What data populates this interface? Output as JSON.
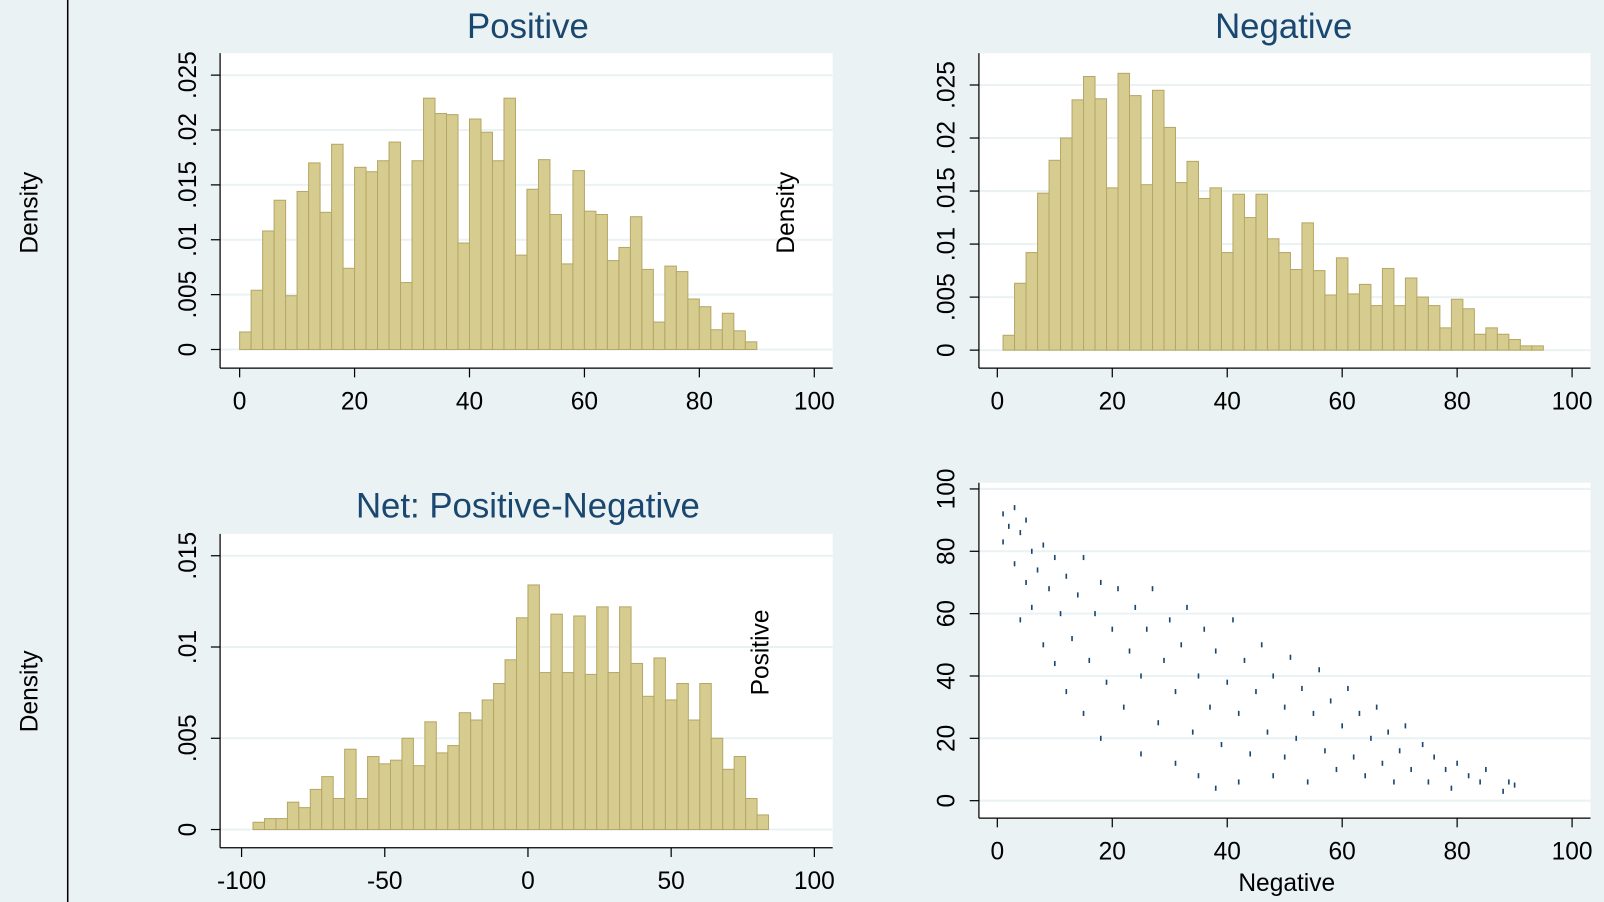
{
  "chart_data": [
    {
      "type": "histogram",
      "title": "Positive",
      "y_label": "Density",
      "color": "#d6cc8f",
      "grid": true,
      "bins": [
        0,
        2,
        4,
        6,
        8,
        10,
        12,
        14,
        16,
        18,
        20,
        22,
        24,
        26,
        28,
        30,
        32,
        34,
        36,
        38,
        40,
        42,
        44,
        46,
        48,
        50,
        52,
        54,
        56,
        58,
        60,
        62,
        64,
        66,
        68,
        70,
        72,
        74,
        76,
        78,
        80,
        82,
        84,
        86,
        88,
        90
      ],
      "values": [
        0.0016,
        0.0054,
        0.0108,
        0.0136,
        0.0049,
        0.0144,
        0.017,
        0.0125,
        0.0187,
        0.0074,
        0.0166,
        0.0162,
        0.0172,
        0.0189,
        0.0061,
        0.0172,
        0.0229,
        0.0215,
        0.0214,
        0.0097,
        0.021,
        0.0198,
        0.0172,
        0.0229,
        0.0086,
        0.0146,
        0.0173,
        0.0123,
        0.0078,
        0.0163,
        0.0126,
        0.0123,
        0.0081,
        0.0093,
        0.0121,
        0.0073,
        0.0025,
        0.0076,
        0.0071,
        0.0046,
        0.0039,
        0.0018,
        0.0033,
        0.0017,
        0.0007
      ],
      "xlim": [
        -3.4,
        103.2
      ],
      "xticks": [
        0,
        20,
        40,
        60,
        80,
        100
      ],
      "ylim": [
        -0.0017,
        0.027
      ],
      "yticks": [
        0,
        {
          "value": 0.005,
          "label": ".005"
        },
        {
          "value": 0.01,
          "label": ".01"
        },
        {
          "value": 0.015,
          "label": ".015"
        },
        {
          "value": 0.02,
          "label": ".02"
        },
        {
          "value": 0.025,
          "label": ".025"
        }
      ]
    },
    {
      "type": "histogram",
      "title": "Negative",
      "y_label": "Density",
      "color": "#d6cc8f",
      "grid": true,
      "bins": [
        1,
        3,
        5,
        7,
        9,
        11,
        13,
        15,
        17,
        19,
        21,
        23,
        25,
        27,
        29,
        31,
        33,
        35,
        37,
        39,
        41,
        43,
        45,
        47,
        49,
        51,
        53,
        55,
        57,
        59,
        61,
        63,
        65,
        67,
        69,
        71,
        73,
        75,
        77,
        79,
        81,
        83,
        85,
        87,
        89,
        91,
        93,
        95
      ],
      "values": [
        0.0014,
        0.0063,
        0.0092,
        0.0148,
        0.0179,
        0.02,
        0.0236,
        0.0258,
        0.0237,
        0.0153,
        0.0261,
        0.024,
        0.0156,
        0.0245,
        0.021,
        0.0158,
        0.0178,
        0.0143,
        0.0153,
        0.0092,
        0.0147,
        0.0125,
        0.0147,
        0.0105,
        0.0092,
        0.0076,
        0.012,
        0.0075,
        0.0052,
        0.0087,
        0.0053,
        0.0062,
        0.0042,
        0.0077,
        0.0042,
        0.0068,
        0.005,
        0.0042,
        0.0021,
        0.0048,
        0.0039,
        0.0015,
        0.0021,
        0.0015,
        0.001,
        0.0004,
        0.0004
      ],
      "xlim": [
        -3.2,
        103.2
      ],
      "xticks": [
        0,
        20,
        40,
        60,
        80,
        100
      ],
      "ylim": [
        -0.0017,
        0.028
      ],
      "yticks": [
        0,
        {
          "value": 0.005,
          "label": ".005"
        },
        {
          "value": 0.01,
          "label": ".01"
        },
        {
          "value": 0.015,
          "label": ".015"
        },
        {
          "value": 0.02,
          "label": ".02"
        },
        {
          "value": 0.025,
          "label": ".025"
        }
      ]
    },
    {
      "type": "histogram",
      "title": "Net: Positive-Negative",
      "y_label": "Density",
      "color": "#d6cc8f",
      "grid": true,
      "bins": [
        -96,
        -92,
        -88,
        -84,
        -80,
        -76,
        -72,
        -68,
        -64,
        -60,
        -56,
        -52,
        -48,
        -44,
        -40,
        -36,
        -32,
        -28,
        -24,
        -20,
        -16,
        -12,
        -8,
        -4,
        0,
        4,
        8,
        12,
        16,
        20,
        24,
        28,
        32,
        36,
        40,
        44,
        48,
        52,
        56,
        60,
        64,
        68,
        72,
        76,
        80,
        84
      ],
      "values": [
        0.0004,
        0.0006,
        0.0006,
        0.0015,
        0.0012,
        0.0022,
        0.0029,
        0.0017,
        0.0044,
        0.0017,
        0.004,
        0.0036,
        0.0038,
        0.005,
        0.0035,
        0.0059,
        0.0042,
        0.0046,
        0.0064,
        0.006,
        0.0071,
        0.008,
        0.0093,
        0.0116,
        0.0134,
        0.0086,
        0.0118,
        0.0086,
        0.0117,
        0.0085,
        0.0122,
        0.0086,
        0.0122,
        0.0091,
        0.0073,
        0.0094,
        0.0071,
        0.008,
        0.006,
        0.008,
        0.005,
        0.0033,
        0.004,
        0.0017,
        0.0008
      ],
      "xlim": [
        -107.5,
        106.4
      ],
      "xticks": [
        -100,
        -50,
        0,
        50,
        100
      ],
      "ylim": [
        -0.001,
        0.0162
      ],
      "yticks": [
        0,
        {
          "value": 0.005,
          "label": ".005"
        },
        {
          "value": 0.01,
          "label": ".01"
        },
        {
          "value": 0.015,
          "label": ".015"
        }
      ]
    },
    {
      "type": "scatter",
      "x_label": "Negative",
      "y_label": "Positive",
      "color": "#1a476f",
      "grid": true,
      "x": [
        1,
        1,
        2,
        3,
        3,
        4,
        5,
        5,
        6,
        6,
        4,
        7,
        8,
        8,
        9,
        10,
        10,
        11,
        12,
        12,
        13,
        14,
        15,
        15,
        16,
        17,
        18,
        18,
        19,
        20,
        21,
        22,
        23,
        24,
        25,
        25,
        26,
        27,
        28,
        29,
        30,
        31,
        31,
        32,
        33,
        34,
        35,
        35,
        36,
        37,
        38,
        38,
        39,
        40,
        41,
        42,
        42,
        43,
        44,
        45,
        46,
        47,
        48,
        48,
        50,
        50,
        51,
        52,
        53,
        54,
        55,
        56,
        57,
        58,
        59,
        60,
        61,
        62,
        63,
        64,
        65,
        66,
        67,
        68,
        69,
        70,
        71,
        72,
        74,
        75,
        76,
        78,
        79,
        80,
        82,
        84,
        85,
        88,
        89,
        90
      ],
      "values": [
        92,
        83,
        88,
        94,
        76,
        86,
        70,
        90,
        80,
        62,
        58,
        74,
        82,
        50,
        68,
        78,
        44,
        60,
        72,
        35,
        52,
        66,
        78,
        28,
        45,
        60,
        70,
        20,
        38,
        55,
        68,
        30,
        48,
        62,
        15,
        40,
        55,
        68,
        25,
        45,
        58,
        12,
        35,
        50,
        62,
        22,
        40,
        8,
        55,
        30,
        48,
        4,
        18,
        38,
        58,
        28,
        6,
        45,
        15,
        35,
        50,
        22,
        8,
        40,
        30,
        14,
        46,
        20,
        36,
        6,
        28,
        42,
        16,
        32,
        10,
        24,
        36,
        14,
        28,
        8,
        20,
        30,
        12,
        22,
        6,
        16,
        24,
        10,
        18,
        6,
        14,
        10,
        4,
        12,
        8,
        6,
        10,
        3,
        6,
        5
      ],
      "xlim": [
        -3.2,
        103.2
      ],
      "xticks": [
        0,
        20,
        40,
        60,
        80,
        100
      ],
      "ylim": [
        -5.6,
        102
      ],
      "yticks": [
        0,
        20,
        40,
        60,
        80,
        100
      ]
    }
  ]
}
